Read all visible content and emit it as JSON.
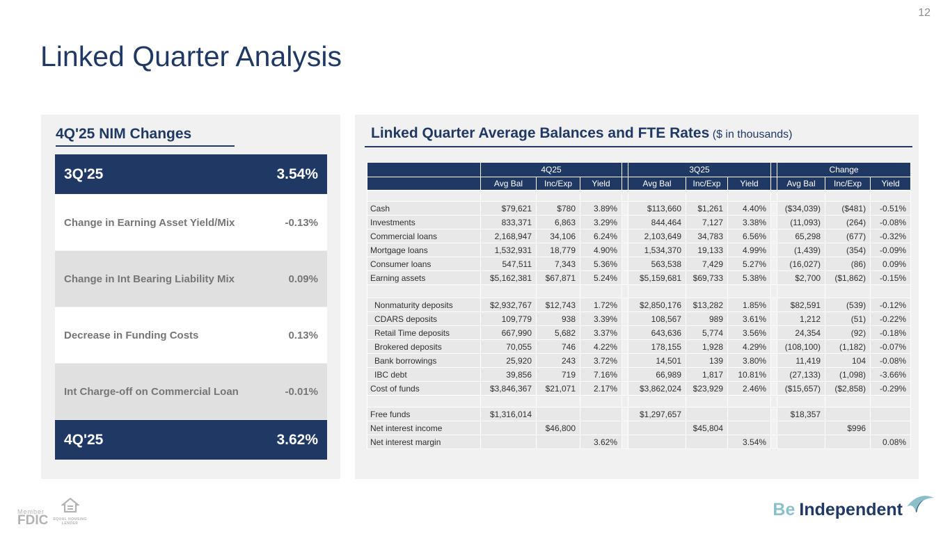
{
  "page_number": "12",
  "title": "Linked Quarter Analysis",
  "colors": {
    "navy": "#1f3864",
    "panel_gray": "#f1f1f1",
    "row_gray": "#e0e0e0",
    "cell_gray": "#e8e8e8",
    "muted_text": "#767676",
    "brand_teal": "#8bc0cb",
    "logo_gray": "#b3b3b3"
  },
  "nim_panel": {
    "title": "4Q'25 NIM Changes",
    "rows": [
      {
        "label": "3Q'25",
        "value": "3.54%",
        "style": "navy"
      },
      {
        "label": "Change in Earning Asset Yield/Mix",
        "value": "-0.13%",
        "style": "white"
      },
      {
        "label": "Change in Int Bearing Liability Mix",
        "value": "0.09%",
        "style": "gray"
      },
      {
        "label": "Decrease in Funding Costs",
        "value": "0.13%",
        "style": "white"
      },
      {
        "label": "Int Charge-off on Commercial Loan",
        "value": "-0.01%",
        "style": "gray"
      },
      {
        "label": "4Q'25",
        "value": "3.62%",
        "style": "navy"
      }
    ]
  },
  "balances_panel": {
    "title": "Linked Quarter Average Balances and FTE Rates",
    "subtitle": "($ in thousands)",
    "table": {
      "groups": [
        "4Q25",
        "3Q25",
        "Change"
      ],
      "sub_headers": [
        "Avg Bal",
        "Inc/Exp",
        "Yield"
      ],
      "rows": [
        {
          "type": "blank",
          "height": 16
        },
        {
          "label": "Cash",
          "indent": false,
          "cells": [
            "$79,621",
            "$780",
            "3.89%",
            "$113,660",
            "$1,261",
            "4.40%",
            "($34,039)",
            "($481)",
            "-0.51%"
          ]
        },
        {
          "label": "Investments",
          "indent": false,
          "cells": [
            "833,371",
            "6,863",
            "3.29%",
            "844,464",
            "7,127",
            "3.38%",
            "(11,093)",
            "(264)",
            "-0.08%"
          ]
        },
        {
          "label": "Commercial loans",
          "indent": false,
          "cells": [
            "2,168,947",
            "34,106",
            "6.24%",
            "2,103,649",
            "34,783",
            "6.56%",
            "65,298",
            "(677)",
            "-0.32%"
          ]
        },
        {
          "label": "Mortgage loans",
          "indent": false,
          "cells": [
            "1,532,931",
            "18,779",
            "4.90%",
            "1,534,370",
            "19,133",
            "4.99%",
            "(1,439)",
            "(354)",
            "-0.09%"
          ]
        },
        {
          "label": "Consumer loans",
          "indent": false,
          "cells": [
            "547,511",
            "7,343",
            "5.36%",
            "563,538",
            "7,429",
            "5.27%",
            "(16,027)",
            "(86)",
            "0.09%"
          ]
        },
        {
          "label": "Earning assets",
          "indent": false,
          "cells": [
            "$5,162,381",
            "$67,871",
            "5.24%",
            "$5,159,681",
            "$69,733",
            "5.38%",
            "$2,700",
            "($1,862)",
            "-0.15%"
          ]
        },
        {
          "type": "blank",
          "height": 19
        },
        {
          "label": "Nonmaturity deposits",
          "indent": true,
          "cells": [
            "$2,932,767",
            "$12,743",
            "1.72%",
            "$2,850,176",
            "$13,282",
            "1.85%",
            "$82,591",
            "(539)",
            "-0.12%"
          ]
        },
        {
          "label": "CDARS deposits",
          "indent": true,
          "cells": [
            "109,779",
            "938",
            "3.39%",
            "108,567",
            "989",
            "3.61%",
            "1,212",
            "(51)",
            "-0.22%"
          ]
        },
        {
          "label": "Retail Time deposits",
          "indent": true,
          "cells": [
            "667,990",
            "5,682",
            "3.37%",
            "643,636",
            "5,774",
            "3.56%",
            "24,354",
            "(92)",
            "-0.18%"
          ]
        },
        {
          "label": "Brokered deposits",
          "indent": true,
          "cells": [
            "70,055",
            "746",
            "4.22%",
            "178,155",
            "1,928",
            "4.29%",
            "(108,100)",
            "(1,182)",
            "-0.07%"
          ]
        },
        {
          "label": "Bank borrowings",
          "indent": true,
          "cells": [
            "25,920",
            "243",
            "3.72%",
            "14,501",
            "139",
            "3.80%",
            "11,419",
            "104",
            "-0.08%"
          ]
        },
        {
          "label": "IBC debt",
          "indent": true,
          "cells": [
            "39,856",
            "719",
            "7.16%",
            "66,989",
            "1,817",
            "10.81%",
            "(27,133)",
            "(1,098)",
            "-3.66%"
          ]
        },
        {
          "label": "Cost of funds",
          "indent": false,
          "cells": [
            "$3,846,367",
            "$21,071",
            "2.17%",
            "$3,862,024",
            "$23,929",
            "2.46%",
            "($15,657)",
            "($2,858)",
            "-0.29%"
          ]
        },
        {
          "type": "blank",
          "height": 17
        },
        {
          "label": "Free funds",
          "indent": false,
          "cells": [
            "$1,316,014",
            "",
            "",
            "$1,297,657",
            "",
            "",
            "$18,357",
            "",
            ""
          ]
        },
        {
          "label": "Net interest income",
          "indent": false,
          "cells": [
            "",
            "$46,800",
            "",
            "",
            "$45,804",
            "",
            "",
            "$996",
            ""
          ]
        },
        {
          "label": "Net interest margin",
          "indent": false,
          "cells": [
            "",
            "",
            "3.62%",
            "",
            "",
            "3.54%",
            "",
            "",
            "0.08%"
          ]
        }
      ]
    }
  },
  "footer": {
    "member_label": "Member",
    "fdic_label": "FDIC",
    "equal_housing_line1": "EQUAL HOUSING",
    "equal_housing_line2": "LENDER",
    "brand_be": "Be",
    "brand_independent": "Independent"
  }
}
